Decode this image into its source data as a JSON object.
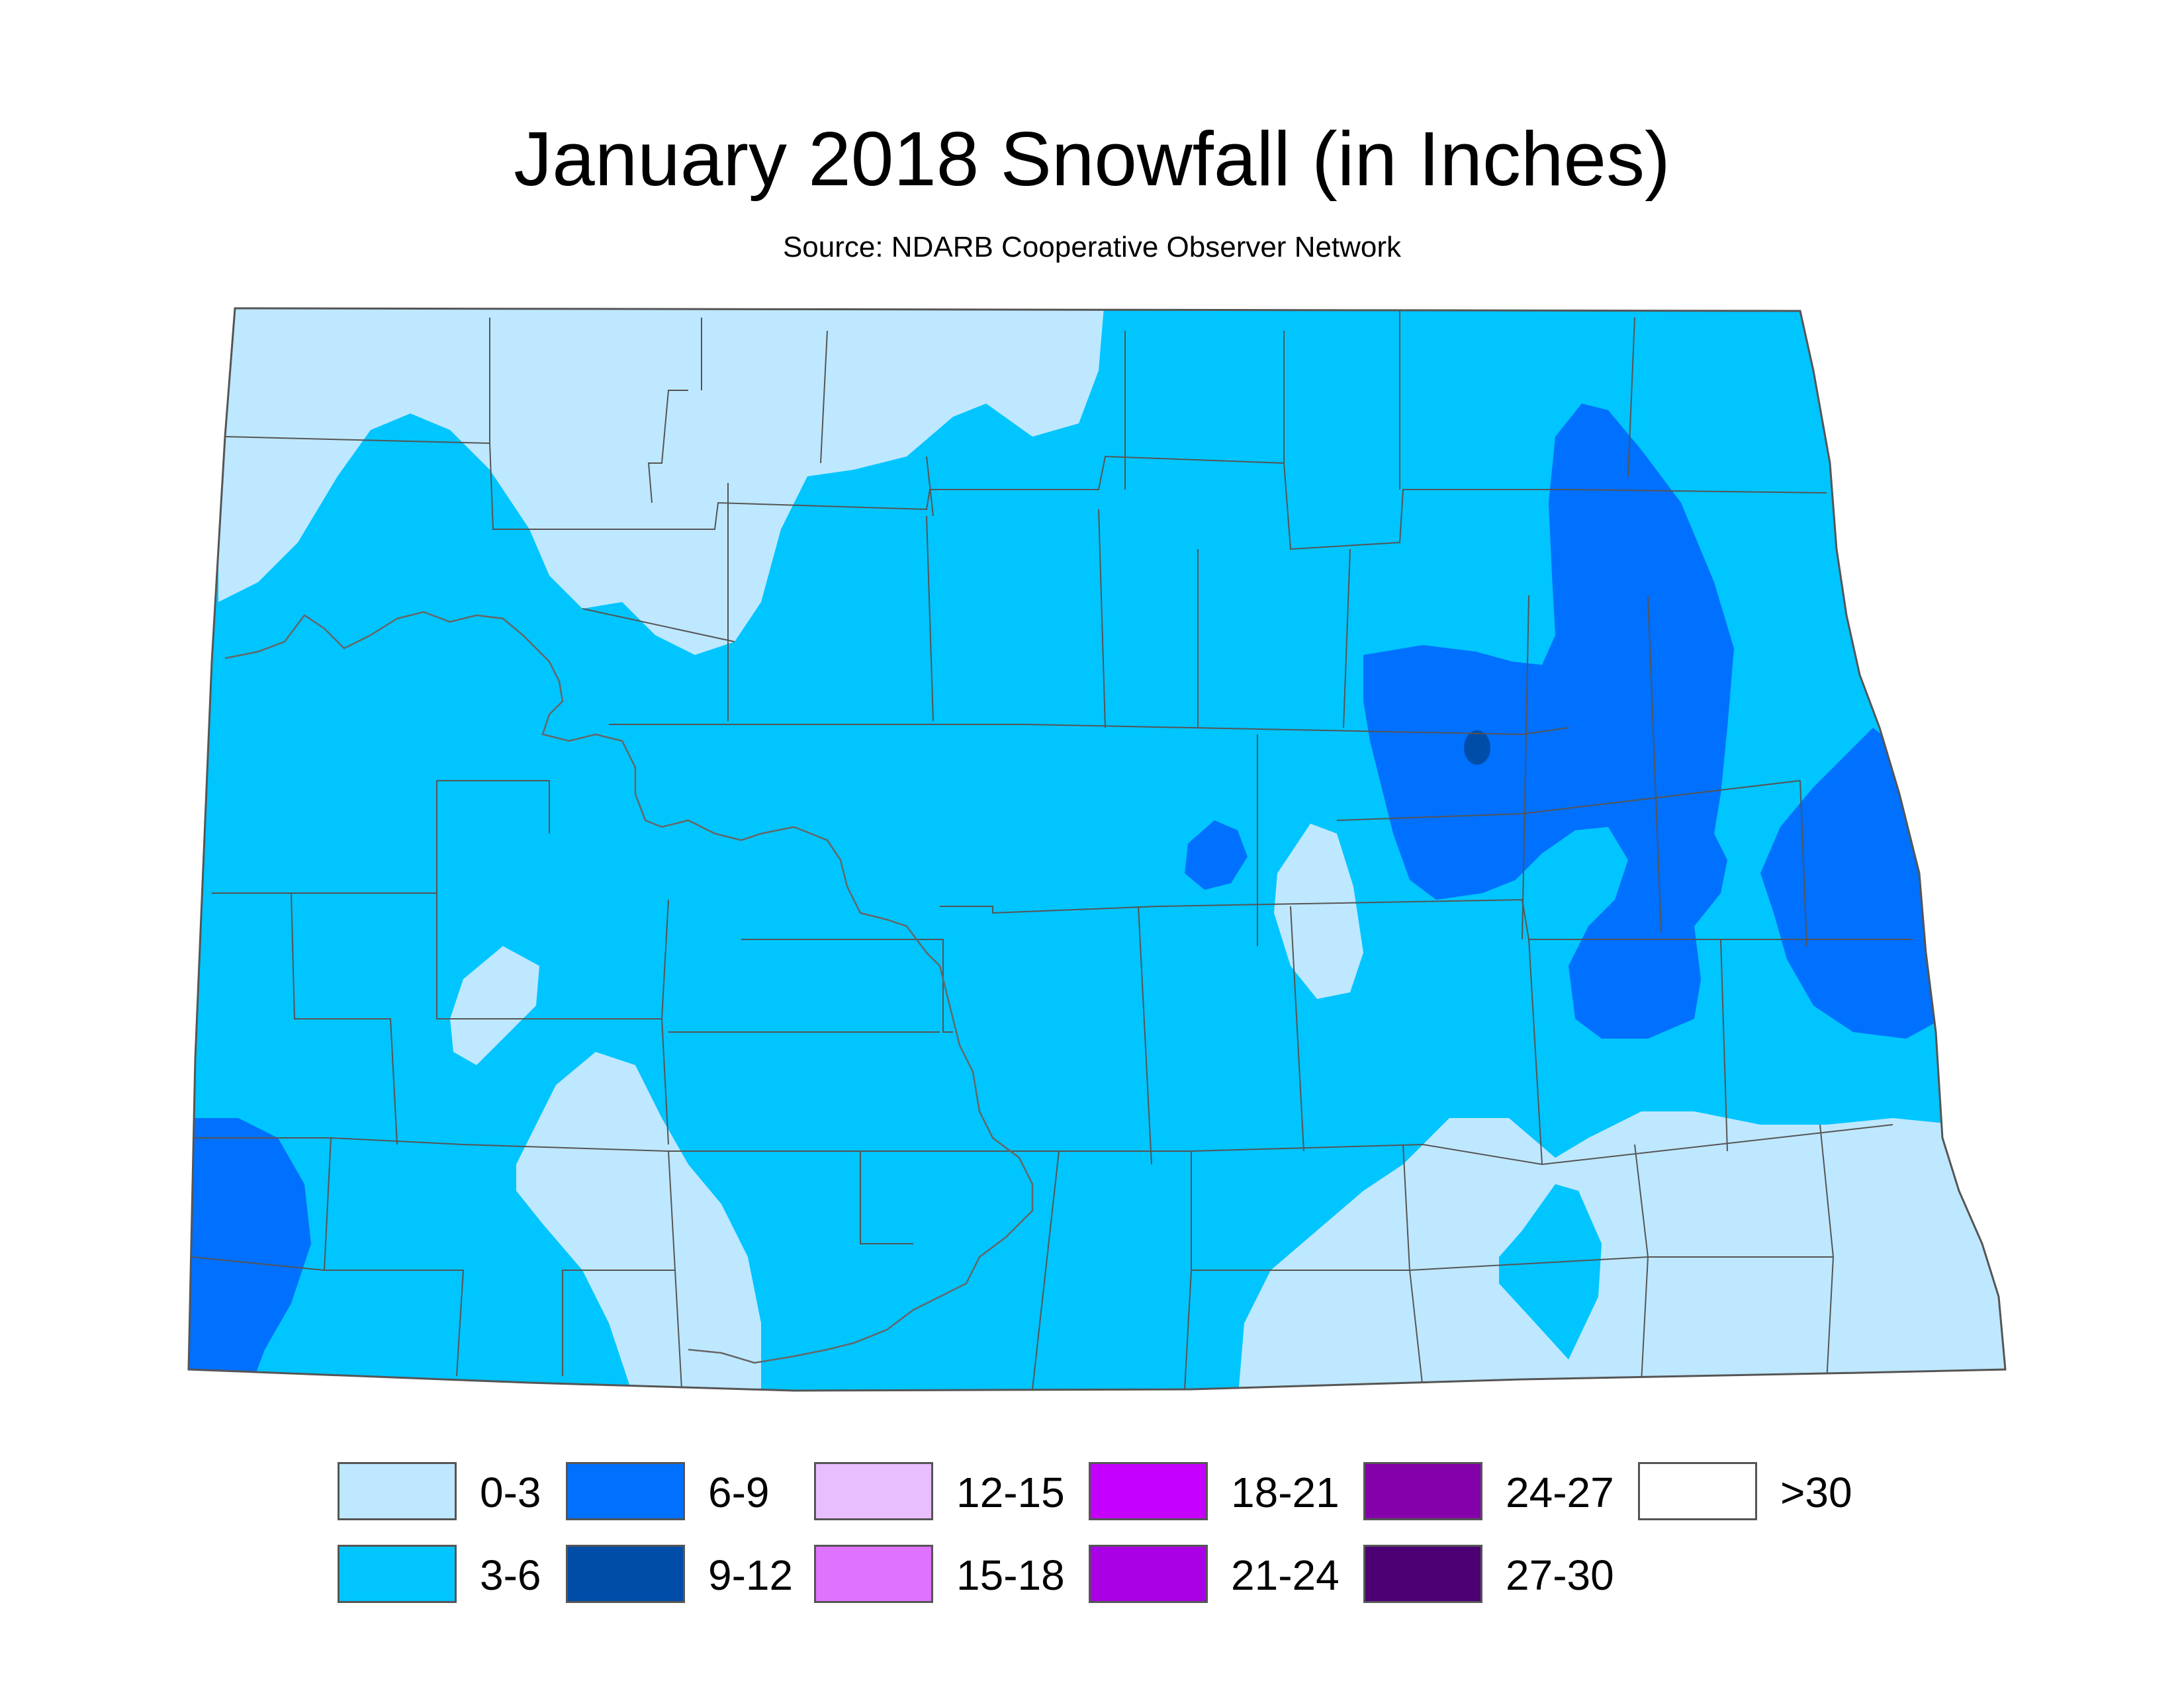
{
  "map": {
    "title": "January 2018 Snowfall (in Inches)",
    "subtitle": "Source: NDARB Cooperative Observer Network",
    "background_color": "#00c5ff",
    "border_color": "#555555"
  },
  "legend": [
    {
      "label": "0-3",
      "color": "#bee8ff"
    },
    {
      "label": "3-6",
      "color": "#00c5ff"
    },
    {
      "label": "6-9",
      "color": "#0070ff"
    },
    {
      "label": "9-12",
      "color": "#004da8"
    },
    {
      "label": "12-15",
      "color": "#e8beff"
    },
    {
      "label": "15-18",
      "color": "#df73ff"
    },
    {
      "label": "18-21",
      "color": "#c500ff"
    },
    {
      "label": "21-24",
      "color": "#a900e6"
    },
    {
      "label": "24-27",
      "color": "#8400a8"
    },
    {
      "label": "27-30",
      "color": "#4c0073"
    },
    {
      "label": ">30",
      "color": "#ffffff"
    }
  ]
}
